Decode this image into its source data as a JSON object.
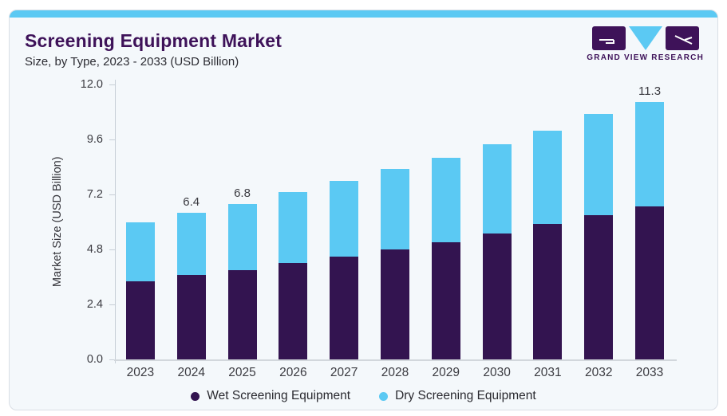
{
  "header": {
    "title": "Screening Equipment Market",
    "subtitle": "Size, by Type, 2023 - 2033 (USD Billion)",
    "logo_text": "GRAND VIEW RESEARCH"
  },
  "colors": {
    "wet": "#331450",
    "dry": "#5bc9f3",
    "accent": "#5bc9f3",
    "logo": "#3e1259",
    "title_text": "#3e1259",
    "card_bg": "#f4f8fb",
    "card_border": "#d9dee5",
    "axis": "#c7ced6"
  },
  "chart_data": {
    "type": "bar",
    "stacked": true,
    "title": "Screening Equipment Market Size, by Type, 2023 - 2033 (USD Billion)",
    "categories": [
      "2023",
      "2024",
      "2025",
      "2026",
      "2027",
      "2028",
      "2029",
      "2030",
      "2031",
      "2032",
      "2033"
    ],
    "series": [
      {
        "name": "Wet Screening Equipment",
        "color": "#331450",
        "values": [
          3.4,
          3.7,
          3.9,
          4.2,
          4.5,
          4.8,
          5.1,
          5.5,
          5.9,
          6.3,
          6.7
        ]
      },
      {
        "name": "Dry Screening Equipment",
        "color": "#5bc9f3",
        "values": [
          2.6,
          2.7,
          2.9,
          3.1,
          3.3,
          3.5,
          3.7,
          3.9,
          4.1,
          4.4,
          4.6
        ]
      }
    ],
    "totals": [
      6.0,
      6.4,
      6.8,
      7.3,
      7.8,
      8.3,
      8.8,
      9.4,
      10.0,
      10.7,
      11.3
    ],
    "bar_labels": [
      "",
      "6.4",
      "6.8",
      "",
      "",
      "",
      "",
      "",
      "",
      "",
      "11.3"
    ],
    "ylabel": "Market Size (USD Billion)",
    "yticks": [
      "12.0",
      "9.6",
      "7.2",
      "4.8",
      "2.4",
      "0.0"
    ],
    "ylim": [
      0,
      12
    ],
    "grid": false,
    "legend_position": "bottom"
  }
}
